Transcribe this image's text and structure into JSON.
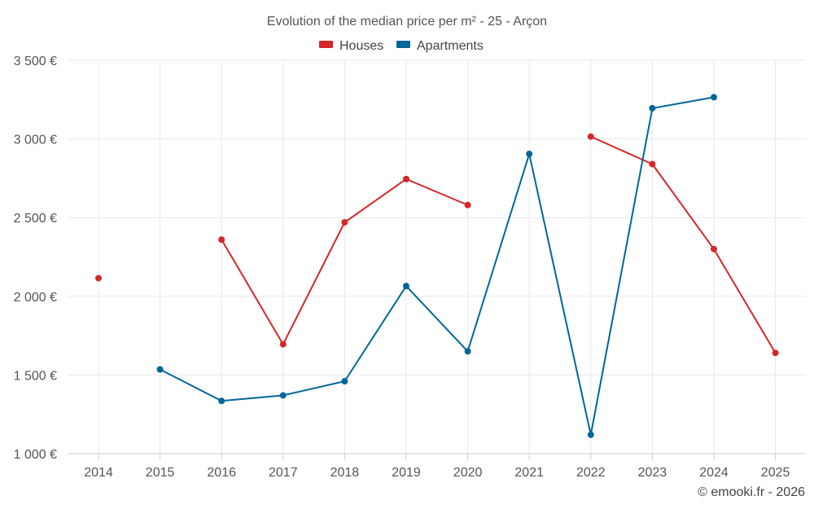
{
  "chart_data": {
    "type": "line",
    "title": "Evolution of the median price per m² - 25 - Arçon",
    "categories": [
      "2014",
      "2015",
      "2016",
      "2017",
      "2018",
      "2019",
      "2020",
      "2021",
      "2022",
      "2023",
      "2024",
      "2025"
    ],
    "series": [
      {
        "name": "Houses",
        "color": "#d62728",
        "values": [
          2115,
          null,
          2360,
          1695,
          2470,
          2745,
          2580,
          null,
          3015,
          2840,
          2300,
          1640
        ]
      },
      {
        "name": "Apartments",
        "color": "#006699",
        "values": [
          null,
          1535,
          1335,
          1370,
          1460,
          2065,
          1650,
          2905,
          1120,
          3195,
          3265,
          null
        ]
      }
    ],
    "ylim": [
      1000,
      3500
    ],
    "yticks": [
      1000,
      1500,
      2000,
      2500,
      3000,
      3500
    ],
    "ytick_labels": [
      "1 000 €",
      "1 500 €",
      "2 000 €",
      "2 500 €",
      "3 000 €",
      "3 500 €"
    ],
    "xlabel": "",
    "ylabel": "",
    "grid": true,
    "legend_position": "top-center"
  },
  "credit": "© emooki.fr - 2026"
}
